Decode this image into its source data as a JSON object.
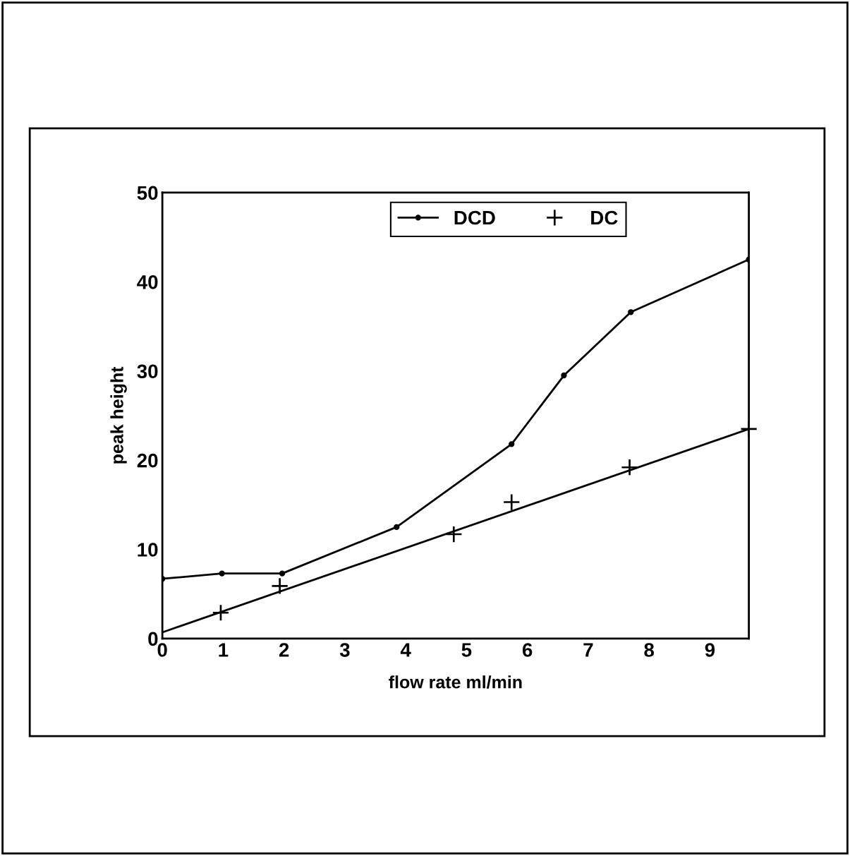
{
  "chart_data": {
    "type": "line",
    "xlabel": "flow rate ml/min",
    "ylabel": "peak height",
    "xlim": [
      0,
      9.64
    ],
    "ylim": [
      0,
      50
    ],
    "xticks": [
      0,
      1,
      2,
      3,
      4,
      5,
      6,
      7,
      8,
      9
    ],
    "yticks": [
      0,
      10,
      20,
      30,
      40,
      50
    ],
    "grid": false,
    "legend": "top",
    "series": [
      {
        "name": "DCD",
        "color": "#000000",
        "marker": "circle",
        "x": [
          0,
          0.98,
          1.97,
          3.85,
          5.74,
          6.6,
          7.7,
          9.64
        ],
        "values": [
          6.7,
          7.3,
          7.3,
          12.5,
          21.8,
          29.5,
          36.6,
          42.5
        ]
      },
      {
        "name": "DC",
        "type": "scatter",
        "color": "#000000",
        "marker": "cross",
        "x": [
          0.96,
          1.93,
          4.79,
          5.74,
          7.68,
          9.64
        ],
        "values": [
          2.9,
          5.9,
          11.7,
          15.3,
          19.2,
          23.5
        ]
      },
      {
        "color": "#000000",
        "marker": "none",
        "x": [
          0,
          9.64
        ],
        "values": [
          0.7,
          23.5
        ]
      }
    ]
  }
}
